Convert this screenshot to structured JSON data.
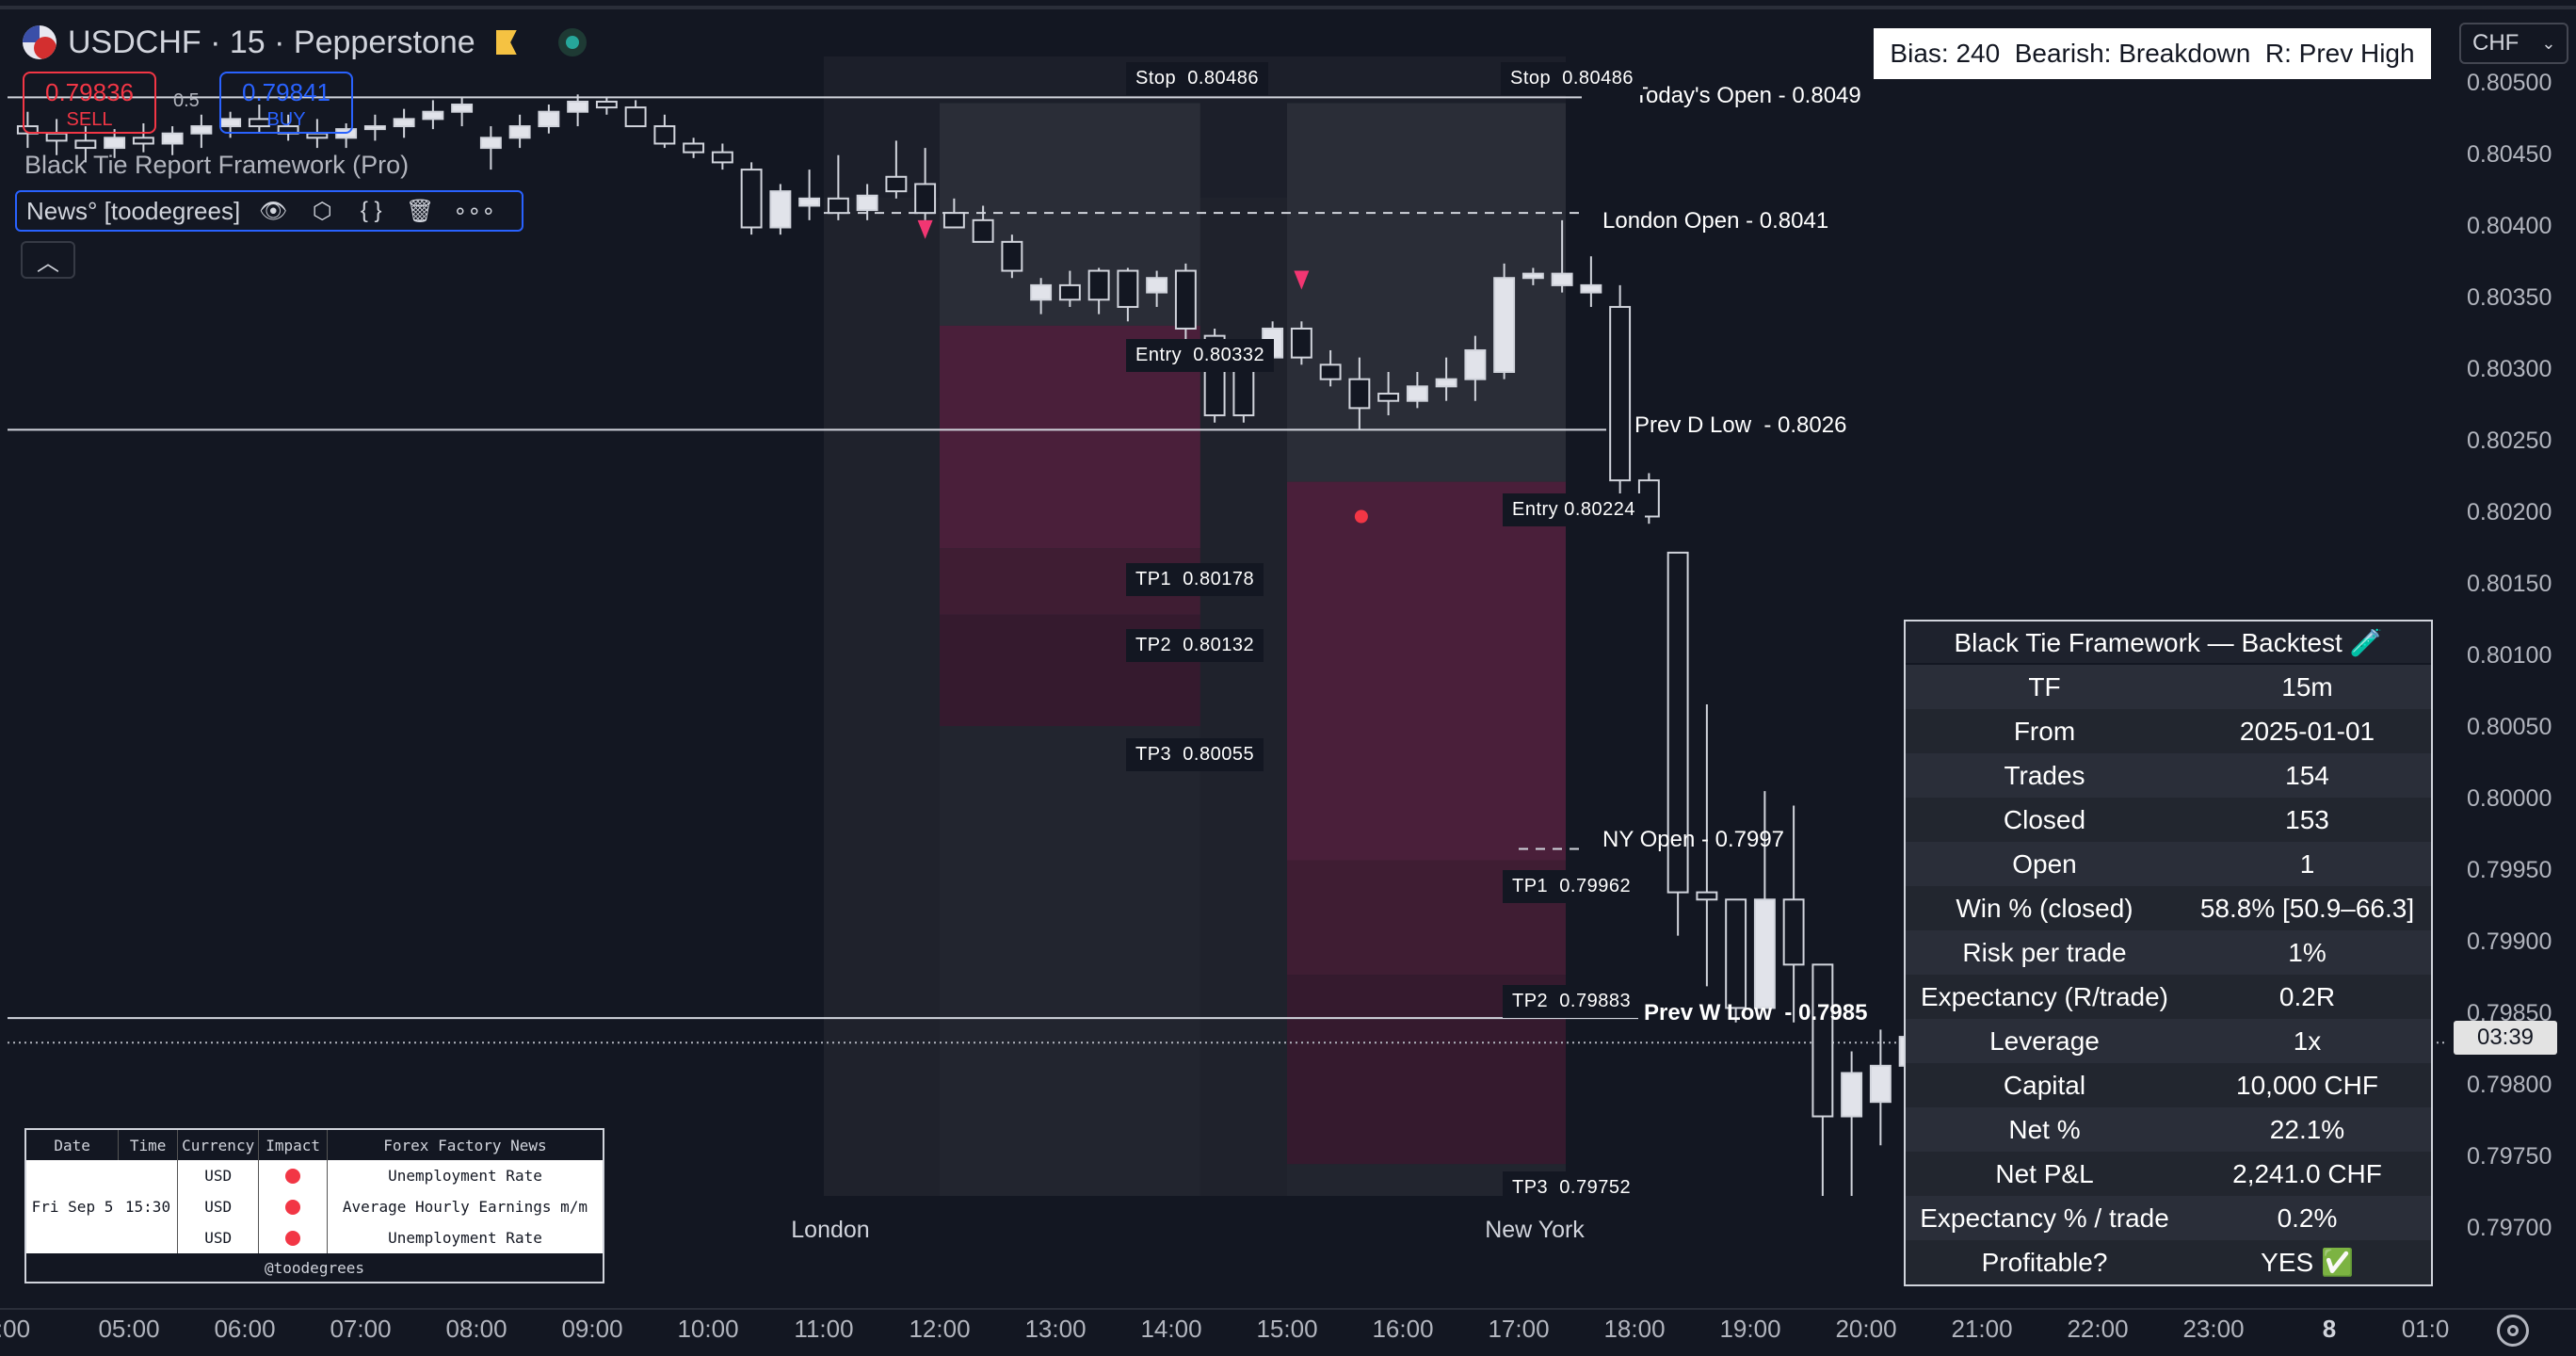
{
  "header": {
    "symbol": "USDCHF · 15 · Pepperstone"
  },
  "trade_buttons": {
    "sell_price": "0.79836",
    "sell_label": "SELL",
    "buy_price": "0.79841",
    "buy_label": "BUY",
    "spread": "0.5"
  },
  "indicators": {
    "framework_name": "Black Tie Report Framework (Pro)",
    "news_name": "News° [toodegrees]"
  },
  "bias_text": "Bias: 240  Bearish: Breakdown  R: Prev High",
  "currency_select": "CHF",
  "price_axis": [
    "0.80500",
    "0.80450",
    "0.80400",
    "0.80350",
    "0.80300",
    "0.80250",
    "0.80200",
    "0.80150",
    "0.80100",
    "0.80050",
    "0.80000",
    "0.79950",
    "0.79900",
    "0.79850",
    "0.79800",
    "0.79750",
    "0.79700"
  ],
  "current_price_countdown": "03:39",
  "time_axis": [
    ":00",
    "05:00",
    "06:00",
    "07:00",
    "08:00",
    "09:00",
    "10:00",
    "11:00",
    "12:00",
    "13:00",
    "14:00",
    "15:00",
    "16:00",
    "17:00",
    "18:00",
    "19:00",
    "20:00",
    "21:00",
    "22:00",
    "23:00",
    "8",
    "01:0"
  ],
  "levels": {
    "todays_open": "Today's Open - 0.8049",
    "london_open": "London Open - 0.8041",
    "prev_d_low": "Prev D Low  - 0.8026",
    "ny_open": "NY Open - 0.7997",
    "prev_w_low": "Prev W Low  - 0.7985"
  },
  "trades": [
    {
      "stop": "Stop  0.80486",
      "entry": "Entry  0.80332",
      "tp1": "TP1  0.80178",
      "tp2": "TP2  0.80132",
      "tp3": "TP3  0.80055"
    },
    {
      "stop": "Stop  0.80486",
      "entry": "Entry 0.80224",
      "tp1": "TP1  0.79962",
      "tp2": "TP2  0.79883",
      "tp3": "TP3  0.79752"
    }
  ],
  "sessions": {
    "london": "London",
    "new_york": "New York"
  },
  "backtest": {
    "title": "Black Tie Framework — Backtest 🧪",
    "rows": [
      {
        "k": "TF",
        "v": "15m"
      },
      {
        "k": "From",
        "v": "2025-01-01"
      },
      {
        "k": "Trades",
        "v": "154"
      },
      {
        "k": "Closed",
        "v": "153"
      },
      {
        "k": "Open",
        "v": "1"
      },
      {
        "k": "Win % (closed)",
        "v": "58.8% [50.9–66.3]"
      },
      {
        "k": "Risk per trade",
        "v": "1%"
      },
      {
        "k": "Expectancy (R/trade)",
        "v": "0.2R"
      },
      {
        "k": "Leverage",
        "v": "1x"
      },
      {
        "k": "Capital",
        "v": "10,000 CHF"
      },
      {
        "k": "Net %",
        "v": "22.1%"
      },
      {
        "k": "Net P&L",
        "v": "2,241.0 CHF"
      },
      {
        "k": "Expectancy % / trade",
        "v": "0.2%"
      },
      {
        "k": "Profitable?",
        "v": "YES ✅"
      }
    ]
  },
  "news_table": {
    "headers": [
      "Date",
      "Time",
      "Currency",
      "Impact",
      "Forex Factory News"
    ],
    "date": "Fri Sep 5",
    "time": "15:30",
    "rows": [
      {
        "currency": "USD",
        "news": "Unemployment Rate"
      },
      {
        "currency": "USD",
        "news": "Average Hourly Earnings m/m"
      },
      {
        "currency": "USD",
        "news": "Unemployment Rate"
      }
    ],
    "footer": "@toodegrees"
  },
  "chart_data": {
    "type": "candlestick",
    "timeframe": "15",
    "start_time": "04:00",
    "ylim": [
      0.7968,
      0.8053
    ],
    "ohlc": [
      [
        0.8047,
        0.8048,
        0.80455,
        0.80465
      ],
      [
        0.80465,
        0.80475,
        0.8045,
        0.8046
      ],
      [
        0.8046,
        0.8047,
        0.80445,
        0.80455
      ],
      [
        0.80455,
        0.80468,
        0.80448,
        0.80462
      ],
      [
        0.80462,
        0.80472,
        0.80452,
        0.80458
      ],
      [
        0.80458,
        0.8047,
        0.8045,
        0.80465
      ],
      [
        0.80465,
        0.80478,
        0.80455,
        0.8047
      ],
      [
        0.8047,
        0.8048,
        0.80462,
        0.80475
      ],
      [
        0.80475,
        0.80485,
        0.80465,
        0.8047
      ],
      [
        0.8047,
        0.80478,
        0.8046,
        0.80465
      ],
      [
        0.80465,
        0.80475,
        0.80455,
        0.80462
      ],
      [
        0.80462,
        0.80472,
        0.80455,
        0.80468
      ],
      [
        0.80468,
        0.80478,
        0.8046,
        0.8047
      ],
      [
        0.8047,
        0.80482,
        0.80462,
        0.80475
      ],
      [
        0.80475,
        0.80488,
        0.80468,
        0.8048
      ],
      [
        0.8048,
        0.8049,
        0.8047,
        0.80485
      ],
      [
        0.80455,
        0.8047,
        0.8044,
        0.80462
      ],
      [
        0.80462,
        0.80478,
        0.80455,
        0.8047
      ],
      [
        0.8047,
        0.80485,
        0.80465,
        0.8048
      ],
      [
        0.8048,
        0.80492,
        0.8047,
        0.80487
      ],
      [
        0.80487,
        0.8049,
        0.80478,
        0.80483
      ],
      [
        0.80483,
        0.80488,
        0.8047,
        0.8047
      ],
      [
        0.8047,
        0.80478,
        0.80455,
        0.80458
      ],
      [
        0.80458,
        0.80462,
        0.80448,
        0.80452
      ],
      [
        0.80452,
        0.80458,
        0.8044,
        0.80445
      ],
      [
        0.8044,
        0.80445,
        0.80395,
        0.804
      ],
      [
        0.804,
        0.8043,
        0.80395,
        0.80425
      ],
      [
        0.80415,
        0.8044,
        0.80405,
        0.8042
      ],
      [
        0.8042,
        0.8045,
        0.80405,
        0.8041
      ],
      [
        0.80412,
        0.8043,
        0.80405,
        0.80422
      ],
      [
        0.80435,
        0.8046,
        0.8042,
        0.80425
      ],
      [
        0.8043,
        0.80455,
        0.80405,
        0.8041
      ],
      [
        0.8041,
        0.8042,
        0.804,
        0.804
      ],
      [
        0.80405,
        0.80415,
        0.8039,
        0.8039
      ],
      [
        0.8039,
        0.80395,
        0.80365,
        0.8037
      ],
      [
        0.8035,
        0.80365,
        0.8034,
        0.8036
      ],
      [
        0.8036,
        0.8037,
        0.80345,
        0.8035
      ],
      [
        0.8037,
        0.80372,
        0.8034,
        0.8035
      ],
      [
        0.8037,
        0.80372,
        0.80335,
        0.80345
      ],
      [
        0.80355,
        0.8037,
        0.80345,
        0.80365
      ],
      [
        0.8037,
        0.80375,
        0.8032,
        0.8033
      ],
      [
        0.80325,
        0.8033,
        0.80265,
        0.8027
      ],
      [
        0.80305,
        0.8031,
        0.80265,
        0.8027
      ],
      [
        0.8031,
        0.80335,
        0.803,
        0.8033
      ],
      [
        0.8033,
        0.80335,
        0.80305,
        0.8031
      ],
      [
        0.80305,
        0.80315,
        0.8029,
        0.80295
      ],
      [
        0.80295,
        0.8031,
        0.8026,
        0.80275
      ],
      [
        0.80285,
        0.803,
        0.8027,
        0.8028
      ],
      [
        0.8028,
        0.803,
        0.80275,
        0.8029
      ],
      [
        0.8029,
        0.8031,
        0.8028,
        0.80295
      ],
      [
        0.80295,
        0.80325,
        0.8028,
        0.80315
      ],
      [
        0.803,
        0.80375,
        0.80295,
        0.80365
      ],
      [
        0.80365,
        0.80372,
        0.8036,
        0.80368
      ],
      [
        0.8036,
        0.80405,
        0.80355,
        0.80368
      ],
      [
        0.80355,
        0.8038,
        0.80345,
        0.8036
      ],
      [
        0.80345,
        0.8036,
        0.8021,
        0.80225
      ],
      [
        0.80225,
        0.8023,
        0.80195,
        0.802
      ],
      [
        0.80175,
        0.80175,
        0.7991,
        0.7994
      ],
      [
        0.7994,
        0.8007,
        0.79875,
        0.79935
      ],
      [
        0.79935,
        0.79935,
        0.7985,
        0.7986
      ],
      [
        0.7986,
        0.8001,
        0.7986,
        0.79935
      ],
      [
        0.79935,
        0.8,
        0.7985,
        0.7989
      ],
      [
        0.7989,
        0.7989,
        0.7973,
        0.79785
      ],
      [
        0.79785,
        0.7983,
        0.7973,
        0.79815
      ],
      [
        0.79795,
        0.79845,
        0.79765,
        0.7982
      ],
      [
        0.7982,
        0.7987,
        0.7978,
        0.7984
      ]
    ]
  }
}
